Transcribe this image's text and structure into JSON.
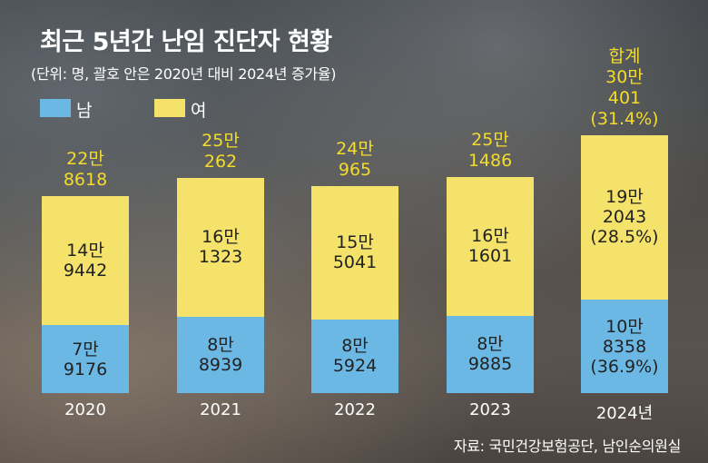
{
  "header": {
    "title": "최근 5년간 난임 진단자 현황",
    "subtitle": "(단위: 명, 괄호 안은 2020년 대비 2024년 증가율)"
  },
  "legend": [
    {
      "label": "남",
      "color": "#6cb8e4"
    },
    {
      "label": "여",
      "color": "#f4e26a"
    }
  ],
  "colors": {
    "male": "#6cb8e4",
    "female": "#f4e26a",
    "total_text": "#f4dc2c"
  },
  "source": "자료: 국민건강보험공단, 남인순의원실",
  "chart_data": {
    "type": "bar",
    "stacked": true,
    "categories": [
      "2020",
      "2021",
      "2022",
      "2023",
      "2024년"
    ],
    "series": [
      {
        "name": "남",
        "values": [
          79176,
          88939,
          85924,
          89885,
          108358
        ]
      },
      {
        "name": "여",
        "values": [
          149442,
          161323,
          155041,
          161601,
          192043
        ]
      }
    ],
    "totals": [
      228618,
      250262,
      240965,
      251486,
      300401
    ],
    "labels": {
      "male": [
        [
          "7만",
          "9176"
        ],
        [
          "8만",
          "8939"
        ],
        [
          "8만",
          "5924"
        ],
        [
          "8만",
          "9885"
        ],
        [
          "10만",
          "8358",
          "(36.9%)"
        ]
      ],
      "female": [
        [
          "14만",
          "9442"
        ],
        [
          "16만",
          "1323"
        ],
        [
          "15만",
          "5041"
        ],
        [
          "16만",
          "1601"
        ],
        [
          "19만",
          "2043",
          "(28.5%)"
        ]
      ],
      "total": [
        [
          "22만",
          "8618"
        ],
        [
          "25만",
          "262"
        ],
        [
          "24만",
          "965"
        ],
        [
          "25만",
          "1486"
        ],
        [
          "합계",
          "30만",
          "401",
          "(31.4%)"
        ]
      ]
    },
    "title": "최근 5년간 난임 진단자 현황",
    "xlabel": "",
    "ylabel": "",
    "ylim": [
      0,
      300401
    ],
    "grid": false,
    "legend_position": "top-left"
  }
}
